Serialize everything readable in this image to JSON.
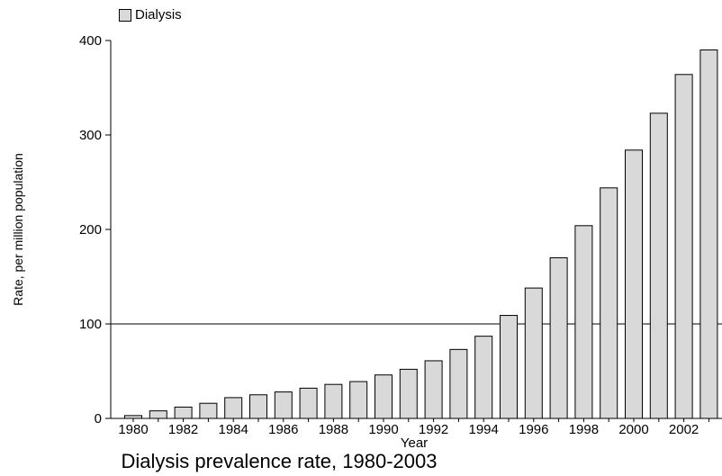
{
  "chart_data": {
    "type": "bar",
    "title": "Dialysis prevalence rate, 1980-2003",
    "xlabel": "Year",
    "ylabel": "Rate, per million population",
    "ylim": [
      0,
      400
    ],
    "yticks": [
      0,
      100,
      200,
      300,
      400
    ],
    "categories": [
      1980,
      1981,
      1982,
      1983,
      1984,
      1985,
      1986,
      1987,
      1988,
      1989,
      1990,
      1991,
      1992,
      1993,
      1994,
      1995,
      1996,
      1997,
      1998,
      1999,
      2000,
      2001,
      2002,
      2003
    ],
    "x_tick_labels": [
      "1980",
      "1982",
      "1984",
      "1986",
      "1988",
      "1990",
      "1992",
      "1994",
      "1996",
      "1998",
      "2000",
      "2002"
    ],
    "series": [
      {
        "name": "Dialysis",
        "values": [
          3,
          8,
          12,
          16,
          22,
          25,
          28,
          32,
          36,
          39,
          46,
          52,
          61,
          73,
          87,
          109,
          138,
          170,
          204,
          244,
          284,
          323,
          364,
          390
        ]
      }
    ],
    "reference_line": 100,
    "legend": "top-left",
    "bar_color": "#d9d9d9"
  }
}
